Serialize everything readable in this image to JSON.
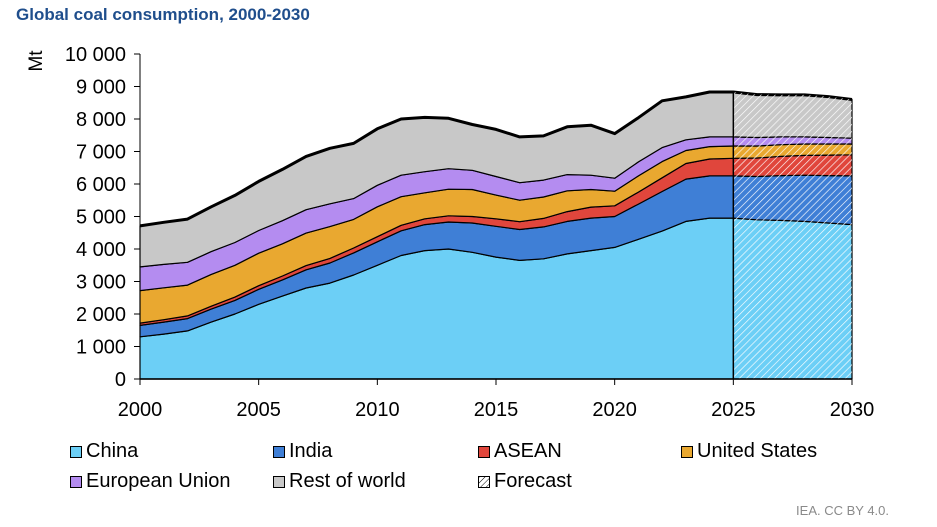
{
  "title": "Global coal consumption, 2000-2030",
  "credit": "IEA. CC BY 4.0.",
  "chart_data": {
    "type": "area",
    "stacked": true,
    "title": "Global coal consumption, 2000-2030",
    "xlabel": "",
    "ylabel": "Mt",
    "xlim": [
      2000,
      2030
    ],
    "ylim": [
      0,
      10000
    ],
    "y_ticks": [
      0,
      1000,
      2000,
      3000,
      4000,
      5000,
      6000,
      7000,
      8000,
      9000,
      10000
    ],
    "y_tick_labels": [
      "0",
      "1 000",
      "2 000",
      "3 000",
      "4 000",
      "5 000",
      "6 000",
      "7 000",
      "8 000",
      "9 000",
      "10 000"
    ],
    "x_ticks": [
      2000,
      2005,
      2010,
      2015,
      2020,
      2025,
      2030
    ],
    "x_tick_labels": [
      "2000",
      "2005",
      "2010",
      "2015",
      "2020",
      "2025",
      "2030"
    ],
    "forecast_start": 2025,
    "x": [
      2000,
      2001,
      2002,
      2003,
      2004,
      2005,
      2006,
      2007,
      2008,
      2009,
      2010,
      2011,
      2012,
      2013,
      2014,
      2015,
      2016,
      2017,
      2018,
      2019,
      2020,
      2021,
      2022,
      2023,
      2024,
      2025,
      2026,
      2027,
      2028,
      2029,
      2030
    ],
    "series": [
      {
        "name": "China",
        "color": "#6ccff6",
        "values": [
          1300,
          1380,
          1480,
          1750,
          2000,
          2300,
          2550,
          2800,
          2950,
          3200,
          3500,
          3800,
          3950,
          4000,
          3900,
          3750,
          3650,
          3700,
          3850,
          3950,
          4050,
          4300,
          4550,
          4850,
          4950,
          4950,
          4900,
          4880,
          4850,
          4800,
          4750
        ]
      },
      {
        "name": "India",
        "color": "#3f7fd6",
        "values": [
          350,
          370,
          380,
          400,
          420,
          460,
          500,
          560,
          620,
          680,
          720,
          760,
          800,
          830,
          900,
          950,
          950,
          980,
          1000,
          1000,
          950,
          1080,
          1220,
          1300,
          1300,
          1300,
          1330,
          1380,
          1420,
          1460,
          1500
        ]
      },
      {
        "name": "ASEAN",
        "color": "#e0463c",
        "values": [
          70,
          75,
          80,
          90,
          100,
          110,
          120,
          130,
          140,
          150,
          160,
          170,
          180,
          190,
          200,
          230,
          240,
          260,
          300,
          340,
          330,
          370,
          420,
          480,
          520,
          540,
          570,
          590,
          610,
          630,
          650
        ]
      },
      {
        "name": "United States",
        "color": "#e9a830",
        "values": [
          1000,
          980,
          950,
          980,
          980,
          1000,
          990,
          1000,
          980,
          880,
          920,
          880,
          800,
          820,
          830,
          730,
          660,
          660,
          640,
          540,
          450,
          500,
          500,
          400,
          380,
          380,
          370,
          360,
          350,
          340,
          330
        ]
      },
      {
        "name": "European Union",
        "color": "#b48cf0",
        "values": [
          730,
          720,
          700,
          700,
          700,
          700,
          710,
          720,
          700,
          640,
          660,
          660,
          650,
          630,
          590,
          570,
          540,
          520,
          500,
          440,
          400,
          430,
          430,
          330,
          300,
          280,
          260,
          240,
          220,
          200,
          180
        ]
      },
      {
        "name": "Rest of world",
        "color": "#c8c8c8",
        "values": [
          1260,
          1295,
          1330,
          1380,
          1450,
          1510,
          1580,
          1640,
          1710,
          1700,
          1740,
          1730,
          1670,
          1550,
          1410,
          1450,
          1410,
          1360,
          1470,
          1540,
          1370,
          1360,
          1440,
          1320,
          1380,
          1380,
          1320,
          1290,
          1290,
          1260,
          1190
        ]
      }
    ],
    "legend": {
      "placement": "bottom",
      "entries": [
        {
          "label": "China",
          "color": "#6ccff6"
        },
        {
          "label": "India",
          "color": "#3f7fd6"
        },
        {
          "label": "ASEAN",
          "color": "#e0463c"
        },
        {
          "label": "United States",
          "color": "#e9a830"
        },
        {
          "label": "European Union",
          "color": "#b48cf0"
        },
        {
          "label": "Rest of world",
          "color": "#c8c8c8"
        },
        {
          "label": "Forecast",
          "color": "#ffffff",
          "pattern": "hatch"
        }
      ]
    },
    "grid": false
  }
}
